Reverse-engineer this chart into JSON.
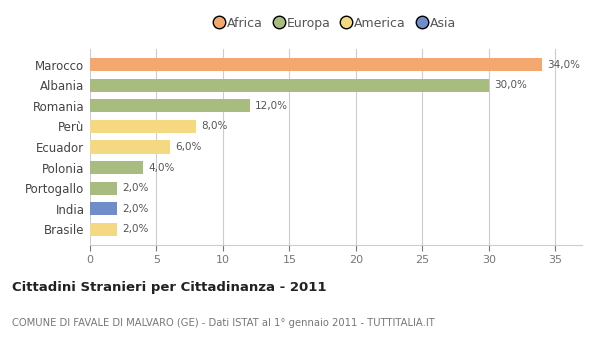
{
  "categories": [
    "Marocco",
    "Albania",
    "Romania",
    "Perù",
    "Ecuador",
    "Polonia",
    "Portogallo",
    "India",
    "Brasile"
  ],
  "values": [
    34.0,
    30.0,
    12.0,
    8.0,
    6.0,
    4.0,
    2.0,
    2.0,
    2.0
  ],
  "colors": [
    "#F4A870",
    "#A8BC80",
    "#A8BC80",
    "#F5D882",
    "#F5D882",
    "#A8BC80",
    "#A8BC80",
    "#6F8DC8",
    "#F5D882"
  ],
  "legend_labels": [
    "Africa",
    "Europa",
    "America",
    "Asia"
  ],
  "legend_colors": [
    "#F4A870",
    "#A8BC80",
    "#F5D882",
    "#6F8DC8"
  ],
  "title": "Cittadini Stranieri per Cittadinanza - 2011",
  "subtitle": "COMUNE DI FAVALE DI MALVARO (GE) - Dati ISTAT al 1° gennaio 2011 - TUTTITALIA.IT",
  "xlim": [
    0,
    37
  ],
  "xticks": [
    0,
    5,
    10,
    15,
    20,
    25,
    30,
    35
  ],
  "background_color": "#ffffff",
  "bar_height": 0.65
}
